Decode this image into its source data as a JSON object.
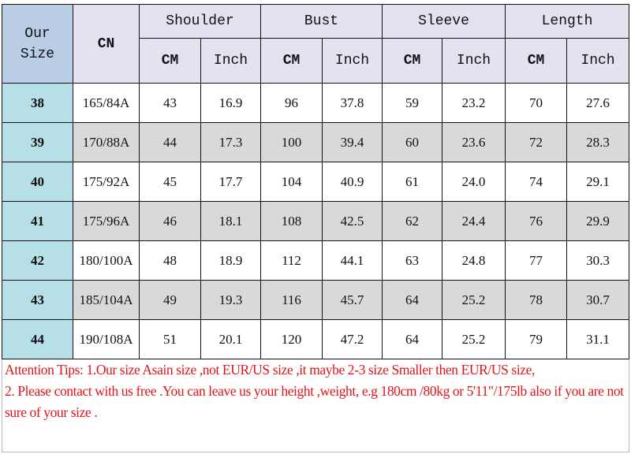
{
  "header": {
    "our_size": [
      "Our",
      "Size"
    ],
    "cn": "CN",
    "groups": [
      "Shoulder",
      "Bust",
      "Sleeve",
      "Length"
    ],
    "units": [
      "CM",
      "Inch"
    ]
  },
  "rows": [
    {
      "size": "38",
      "cn": "165/84A",
      "values": [
        "43",
        "16.9",
        "96",
        "37.8",
        "59",
        "23.2",
        "70",
        "27.6"
      ]
    },
    {
      "size": "39",
      "cn": "170/88A",
      "values": [
        "44",
        "17.3",
        "100",
        "39.4",
        "60",
        "23.6",
        "72",
        "28.3"
      ]
    },
    {
      "size": "40",
      "cn": "175/92A",
      "values": [
        "45",
        "17.7",
        "104",
        "40.9",
        "61",
        "24.0",
        "74",
        "29.1"
      ]
    },
    {
      "size": "41",
      "cn": "175/96A",
      "values": [
        "46",
        "18.1",
        "108",
        "42.5",
        "62",
        "24.4",
        "76",
        "29.9"
      ]
    },
    {
      "size": "42",
      "cn": "180/100A",
      "values": [
        "48",
        "18.9",
        "112",
        "44.1",
        "63",
        "24.8",
        "77",
        "30.3"
      ]
    },
    {
      "size": "43",
      "cn": "185/104A",
      "values": [
        "49",
        "19.3",
        "116",
        "45.7",
        "64",
        "25.2",
        "78",
        "30.7"
      ]
    },
    {
      "size": "44",
      "cn": "190/108A",
      "values": [
        "51",
        "20.1",
        "120",
        "47.2",
        "64",
        "25.2",
        "79",
        "31.1"
      ]
    }
  ],
  "note": {
    "line1": "Attention Tips: 1.Our size Asain size ,not EUR/US size ,it  maybe 2-3 size Smaller then EUR/US size,",
    "line2": "2. Please contact with us free .You can leave us your height ,weight, e.g 180cm /80kg or 5'11\"/175lb also if you are not sure of your size ."
  },
  "colors": {
    "header": "#e6e1ef",
    "our_size": "#b9cde5",
    "size_col": "#b7dfe8",
    "alt_row": "#d9d9d9",
    "note_text": "#e0141b"
  }
}
